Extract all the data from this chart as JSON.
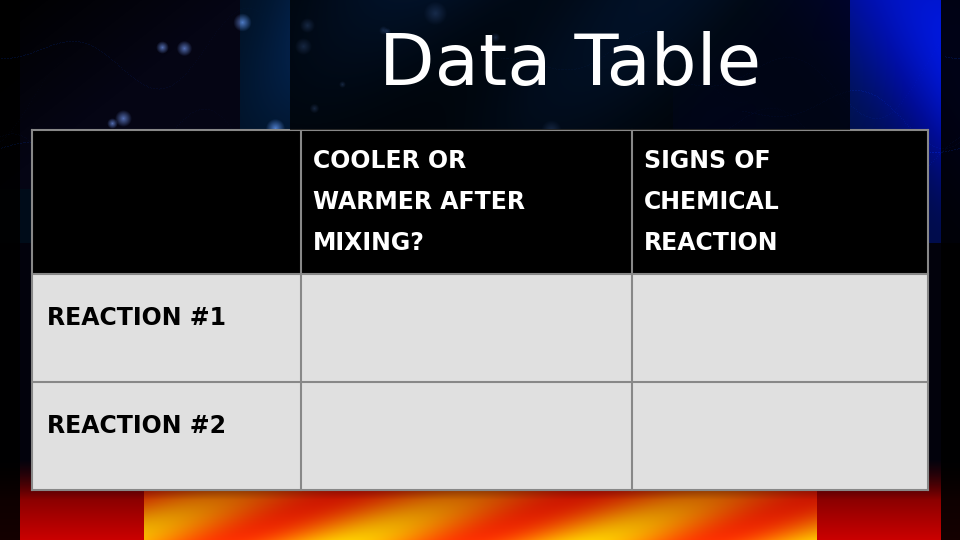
{
  "title": "Data Table",
  "title_fontsize": 52,
  "title_color": "#ffffff",
  "header_bg": "#000000",
  "header_text_color": "#ffffff",
  "row_bg": "#e0e0e0",
  "row_text_color": "#000000",
  "border_color": "#555555",
  "col1_header": "COOLER OR\nWARMER AFTER\nMIXING?",
  "col2_header": "SIGNS OF\nCHEMICAL\nREACTION",
  "row1_label": "REACTION #1",
  "row2_label": "REACTION #2",
  "header_fontsize": 17,
  "row_fontsize": 17,
  "fig_width": 9.6,
  "fig_height": 5.4,
  "dpi": 100
}
